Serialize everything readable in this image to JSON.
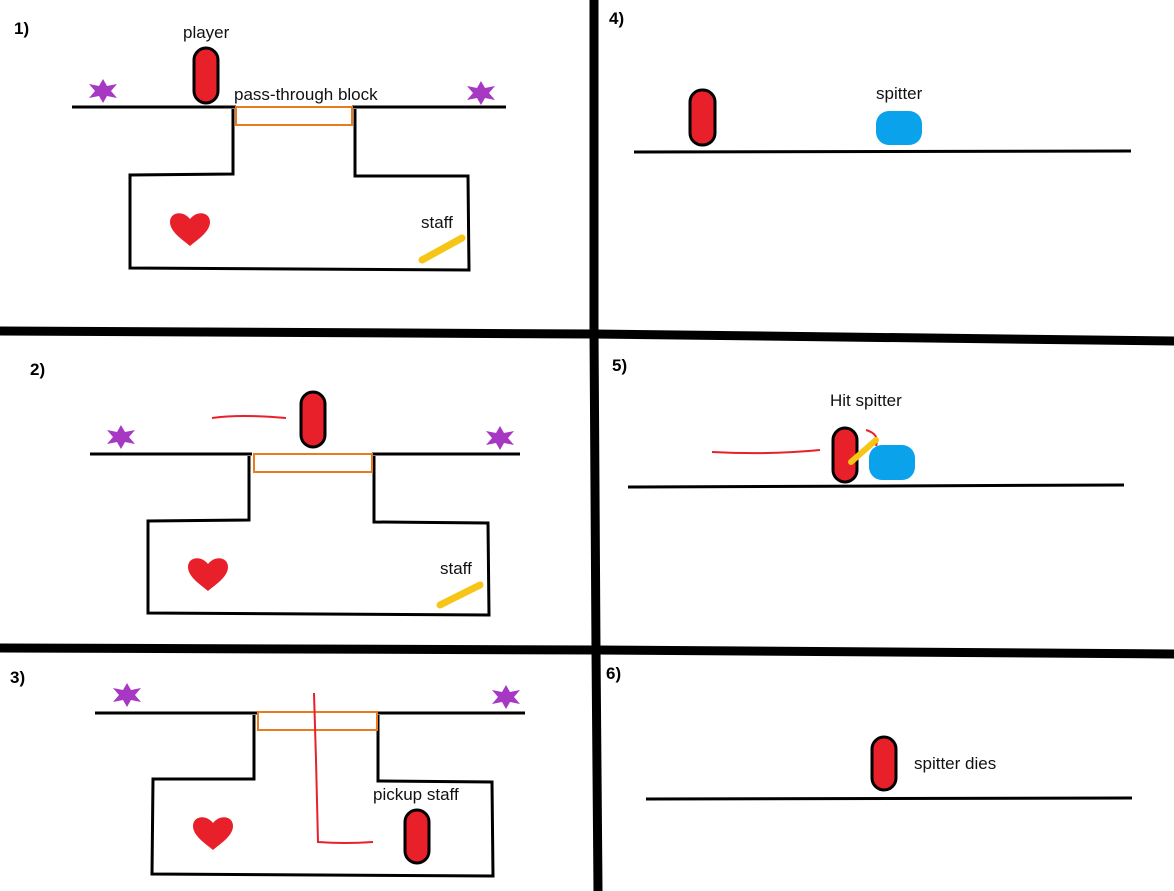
{
  "colors": {
    "ink": "#000000",
    "player": "#e8202a",
    "spitter": "#0aa2ea",
    "staff": "#f7c515",
    "block": "#e87b1e",
    "spark": "#a638c4",
    "heart": "#e8202a",
    "trail": "#e8202a"
  },
  "panels": [
    {
      "number": "1)",
      "labels": {
        "player": "player",
        "block": "pass-through block",
        "staff": "staff"
      }
    },
    {
      "number": "2)",
      "labels": {
        "staff": "staff"
      }
    },
    {
      "number": "3)",
      "labels": {
        "pickup": "pickup staff"
      }
    },
    {
      "number": "4)",
      "labels": {
        "spitter": "spitter"
      }
    },
    {
      "number": "5)",
      "labels": {
        "hit": "Hit spitter"
      }
    },
    {
      "number": "6)",
      "labels": {
        "dies": "spitter dies"
      }
    }
  ],
  "icons": {
    "player": "player-capsule-icon",
    "spitter": "spitter-blob-icon",
    "staff": "staff-icon",
    "heart": "heart-icon",
    "spark": "spark-icon"
  }
}
